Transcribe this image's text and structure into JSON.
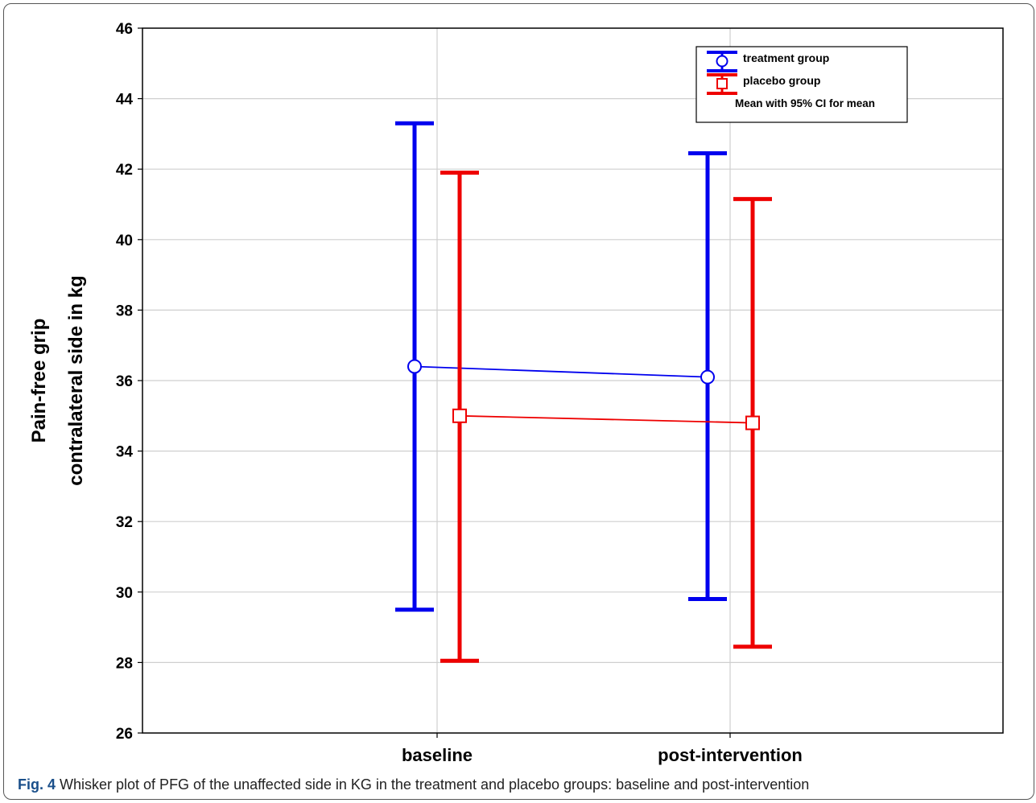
{
  "caption": {
    "label": "Fig. 4",
    "text": " Whisker plot of PFG of the unaffected side in KG in the treatment and placebo groups: baseline and post-intervention"
  },
  "chart_data": {
    "type": "line",
    "title": "",
    "xlabel": "",
    "ylabel_lines": [
      "Pain-free grip",
      "contralateral side in kg"
    ],
    "categories": [
      "baseline",
      "post-intervention"
    ],
    "ylim": [
      26,
      46
    ],
    "yticks": [
      26,
      28,
      30,
      32,
      34,
      36,
      38,
      40,
      42,
      44,
      46
    ],
    "grid": true,
    "legend_position": "top-right",
    "legend_note": "Mean with 95% CI for mean",
    "series": [
      {
        "name": "treatment group",
        "color": "#0000ee",
        "marker": "circle",
        "mean": [
          36.4,
          36.1
        ],
        "ci_low": [
          29.5,
          29.8
        ],
        "ci_high": [
          43.3,
          42.45
        ]
      },
      {
        "name": "placebo group",
        "color": "#ee0000",
        "marker": "square",
        "mean": [
          35.0,
          34.8
        ],
        "ci_low": [
          28.05,
          28.45
        ],
        "ci_high": [
          41.9,
          41.15
        ]
      }
    ]
  }
}
